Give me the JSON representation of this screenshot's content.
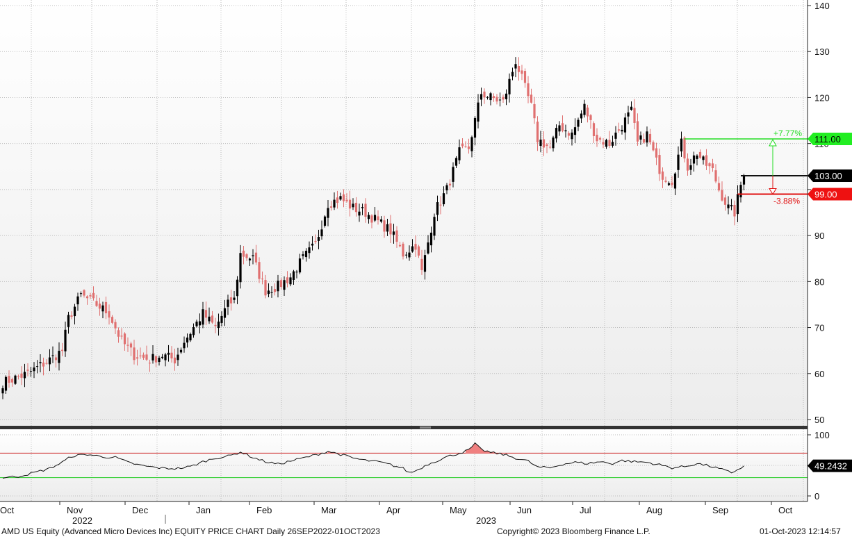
{
  "chart_data": {
    "type": "candlestick",
    "ticker": "AMD US Equity (Advanced Micro Devices Inc) EQUITY PRICE CHART",
    "frequency": "Daily",
    "range_label": "26SEP2022-01OCT2023",
    "price_axis": {
      "ylim": [
        48,
        140
      ],
      "ticks": [
        50,
        60,
        70,
        80,
        90,
        100,
        110,
        120,
        130,
        140
      ],
      "tick_labels": [
        "50",
        "60",
        "70",
        "80",
        "90",
        "",
        "110",
        "120",
        "130",
        "140"
      ]
    },
    "oscillator_axis": {
      "ylim": [
        0,
        100
      ],
      "ticks": [
        0,
        50,
        100
      ],
      "tick_labels": [
        "0",
        "",
        "100"
      ],
      "upper_band": 70,
      "lower_band": 30
    },
    "x_month_labels": [
      "Oct",
      "Nov",
      "Dec",
      "Jan",
      "Feb",
      "Mar",
      "Apr",
      "May",
      "Jun",
      "Jul",
      "Aug",
      "Sep",
      "Oct"
    ],
    "x_year_labels": [
      "2022",
      "2023"
    ],
    "price_levels": [
      {
        "label": "111.00",
        "value": 111.0,
        "color": "#22dd22",
        "pct_label": "+7.77%"
      },
      {
        "label": "103.00",
        "value": 103.0,
        "color": "#111111"
      },
      {
        "label": "99.00",
        "value": 99.0,
        "color": "#e01010",
        "pct_label": "-3.88%"
      }
    ],
    "oscillator_last": {
      "label": "49.2432",
      "value": 49.2432
    },
    "close_keypoints": [
      [
        0,
        58
      ],
      [
        8,
        60
      ],
      [
        15,
        63
      ],
      [
        19,
        65
      ],
      [
        21,
        72
      ],
      [
        25,
        77
      ],
      [
        30,
        75
      ],
      [
        34,
        73
      ],
      [
        38,
        67
      ],
      [
        42,
        64
      ],
      [
        47,
        63
      ],
      [
        51,
        64
      ],
      [
        55,
        63
      ],
      [
        58,
        67
      ],
      [
        64,
        73
      ],
      [
        68,
        70
      ],
      [
        72,
        75
      ],
      [
        74,
        76
      ],
      [
        76,
        86
      ],
      [
        80,
        85
      ],
      [
        84,
        78
      ],
      [
        88,
        79
      ],
      [
        92,
        81
      ],
      [
        96,
        85
      ],
      [
        100,
        88
      ],
      [
        104,
        97
      ],
      [
        108,
        98
      ],
      [
        112,
        96
      ],
      [
        116,
        95
      ],
      [
        120,
        93
      ],
      [
        124,
        91
      ],
      [
        128,
        86
      ],
      [
        132,
        88
      ],
      [
        134,
        82
      ],
      [
        138,
        95
      ],
      [
        142,
        100
      ],
      [
        146,
        108
      ],
      [
        149,
        109
      ],
      [
        153,
        121
      ],
      [
        156,
        120
      ],
      [
        160,
        119
      ],
      [
        164,
        128
      ],
      [
        166,
        124
      ],
      [
        169,
        118
      ],
      [
        171,
        111
      ],
      [
        175,
        109
      ],
      [
        178,
        114
      ],
      [
        182,
        112
      ],
      [
        186,
        118
      ],
      [
        190,
        111
      ],
      [
        194,
        110
      ],
      [
        197,
        113
      ],
      [
        201,
        117
      ],
      [
        203,
        110
      ],
      [
        206,
        112
      ],
      [
        209,
        106
      ],
      [
        211,
        103
      ],
      [
        214,
        102
      ],
      [
        217,
        110
      ],
      [
        219,
        105
      ],
      [
        222,
        108
      ],
      [
        224,
        106
      ],
      [
        227,
        104
      ],
      [
        229,
        100
      ],
      [
        232,
        96
      ],
      [
        234,
        95
      ],
      [
        236,
        101
      ],
      [
        237,
        103
      ]
    ],
    "rsi_keypoints": [
      [
        0,
        30
      ],
      [
        5,
        32
      ],
      [
        10,
        38
      ],
      [
        15,
        45
      ],
      [
        19,
        55
      ],
      [
        22,
        65
      ],
      [
        27,
        68
      ],
      [
        32,
        64
      ],
      [
        36,
        63
      ],
      [
        40,
        55
      ],
      [
        44,
        50
      ],
      [
        48,
        47
      ],
      [
        52,
        45
      ],
      [
        56,
        45
      ],
      [
        60,
        48
      ],
      [
        64,
        56
      ],
      [
        68,
        62
      ],
      [
        72,
        65
      ],
      [
        74,
        68
      ],
      [
        76,
        72
      ],
      [
        80,
        63
      ],
      [
        84,
        56
      ],
      [
        88,
        52
      ],
      [
        92,
        57
      ],
      [
        96,
        62
      ],
      [
        100,
        67
      ],
      [
        104,
        73
      ],
      [
        108,
        68
      ],
      [
        112,
        62
      ],
      [
        116,
        58
      ],
      [
        120,
        56
      ],
      [
        124,
        51
      ],
      [
        128,
        45
      ],
      [
        130,
        38
      ],
      [
        132,
        41
      ],
      [
        136,
        52
      ],
      [
        142,
        64
      ],
      [
        146,
        70
      ],
      [
        149,
        75
      ],
      [
        151,
        85
      ],
      [
        153,
        76
      ],
      [
        156,
        71
      ],
      [
        160,
        68
      ],
      [
        164,
        62
      ],
      [
        168,
        57
      ],
      [
        171,
        47
      ],
      [
        175,
        46
      ],
      [
        179,
        52
      ],
      [
        183,
        55
      ],
      [
        187,
        53
      ],
      [
        191,
        56
      ],
      [
        195,
        53
      ],
      [
        198,
        58
      ],
      [
        202,
        56
      ],
      [
        206,
        55
      ],
      [
        210,
        51
      ],
      [
        214,
        46
      ],
      [
        218,
        48
      ],
      [
        222,
        53
      ],
      [
        226,
        49
      ],
      [
        230,
        43
      ],
      [
        233,
        38
      ],
      [
        236,
        46
      ],
      [
        237,
        49.2432
      ]
    ],
    "n_days": 238
  },
  "footer": {
    "left": "AMD US Equity (Advanced Micro Devices Inc) EQUITY PRICE CHART  Daily 26SEP2022-01OCT2023",
    "center": "Copyright© 2023 Bloomberg Finance L.P.",
    "right": "01-Oct-2023 12:14:57"
  },
  "colors": {
    "up_candle": "#000000",
    "down_candle": "#e07070",
    "grid": "#bdbdbd",
    "panel_bg_top": "#ffffff",
    "panel_bg_bottom": "#ececec",
    "separator": "#333333",
    "rsi_line": "#111111",
    "rsi_overbought": "#cc2222",
    "rsi_oversold": "#22cc22"
  }
}
